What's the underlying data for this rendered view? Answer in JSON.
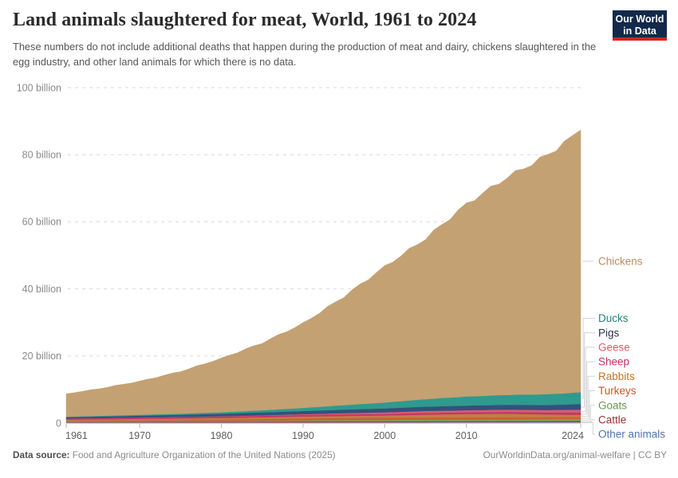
{
  "header": {
    "title": "Land animals slaughtered for meat, World, 1961 to 2024",
    "subtitle": "These numbers do not include additional deaths that happen during the production of meat and dairy, chickens slaughtered in the egg industry, and other land animals for which there is no data.",
    "logo": {
      "line1": "Our World",
      "line2": "in Data",
      "bg_color": "#12294B",
      "bar_color": "#CE261E"
    }
  },
  "chart_data": {
    "type": "area",
    "stacked": true,
    "title": "Land animals slaughtered for meat, World, 1961 to 2024",
    "y_unit": "billion animals slaughtered per year",
    "x": [
      1961,
      1965,
      1970,
      1975,
      1980,
      1985,
      1990,
      1995,
      2000,
      2005,
      2010,
      2015,
      2020,
      2024
    ],
    "x_ticks": [
      1961,
      1970,
      1980,
      1990,
      2000,
      2010,
      2024
    ],
    "y_tick_values": [
      0,
      20,
      40,
      60,
      80,
      100
    ],
    "y_tick_labels": [
      "0",
      "20 billion",
      "40 billion",
      "60 billion",
      "80 billion",
      "100 billion"
    ],
    "ylim": [
      0,
      100
    ],
    "grid": "dashed",
    "grid_color": "#D9D9D9",
    "legend_position": "right",
    "series": [
      {
        "name": "Chickens",
        "color": "#C4A172",
        "label_color": "#B78F5F",
        "values": [
          6.9,
          8.2,
          10.1,
          12.7,
          16.2,
          20.2,
          25.3,
          32.5,
          40.6,
          48.0,
          57.5,
          65.0,
          71.5,
          78.3
        ]
      },
      {
        "name": "Ducks",
        "color": "#2F9A8E",
        "label_color": "#1E8579",
        "values": [
          0.18,
          0.22,
          0.26,
          0.33,
          0.43,
          0.65,
          0.92,
          1.35,
          1.75,
          2.25,
          2.7,
          2.95,
          3.25,
          3.5
        ]
      },
      {
        "name": "Pigs",
        "color": "#33517D",
        "label_color": "#28304F",
        "values": [
          0.38,
          0.45,
          0.55,
          0.65,
          0.75,
          0.85,
          0.95,
          1.05,
          1.18,
          1.3,
          1.38,
          1.45,
          1.45,
          1.7
        ]
      },
      {
        "name": "Geese",
        "color": "#DA5C70",
        "label_color": "#E15867",
        "values": [
          0.03,
          0.04,
          0.05,
          0.07,
          0.1,
          0.15,
          0.22,
          0.35,
          0.47,
          0.58,
          0.62,
          0.68,
          0.75,
          0.85
        ]
      },
      {
        "name": "Sheep",
        "color": "#C13765",
        "label_color": "#C02E63",
        "values": [
          0.33,
          0.35,
          0.38,
          0.4,
          0.42,
          0.45,
          0.48,
          0.47,
          0.47,
          0.52,
          0.52,
          0.55,
          0.6,
          0.68
        ]
      },
      {
        "name": "Rabbits",
        "color": "#C37E41",
        "label_color": "#BE7529",
        "values": [
          0.35,
          0.38,
          0.42,
          0.45,
          0.48,
          0.52,
          0.55,
          0.6,
          0.65,
          0.85,
          1.0,
          1.05,
          0.8,
          0.7
        ]
      },
      {
        "name": "Turkeys",
        "color": "#C95E3C",
        "label_color": "#CF512D",
        "values": [
          0.14,
          0.18,
          0.23,
          0.28,
          0.35,
          0.45,
          0.58,
          0.63,
          0.67,
          0.65,
          0.63,
          0.62,
          0.57,
          0.5
        ]
      },
      {
        "name": "Goats",
        "color": "#7BA156",
        "label_color": "#6A9450",
        "values": [
          0.17,
          0.18,
          0.2,
          0.22,
          0.24,
          0.28,
          0.32,
          0.38,
          0.4,
          0.44,
          0.48,
          0.52,
          0.58,
          0.62
        ]
      },
      {
        "name": "Cattle",
        "color": "#9E3B40",
        "label_color": "#9A3339",
        "values": [
          0.17,
          0.18,
          0.2,
          0.22,
          0.24,
          0.26,
          0.28,
          0.29,
          0.3,
          0.31,
          0.32,
          0.32,
          0.33,
          0.35
        ]
      },
      {
        "name": "Other animals",
        "color": "#93A0C1",
        "label_color": "#5273B2",
        "values": [
          0.05,
          0.06,
          0.06,
          0.07,
          0.08,
          0.09,
          0.1,
          0.11,
          0.12,
          0.13,
          0.14,
          0.15,
          0.16,
          0.17
        ]
      }
    ]
  },
  "axes": {
    "y_label_color": "#8A8A8A",
    "x_label_color": "#5E5E5E"
  },
  "footer": {
    "datasource_label": "Data source:",
    "datasource_text": "Food and Agriculture Organization of the United Nations (2025)",
    "link": "OurWorldinData.org/animal-welfare",
    "separator": "|",
    "license": "CC BY"
  }
}
